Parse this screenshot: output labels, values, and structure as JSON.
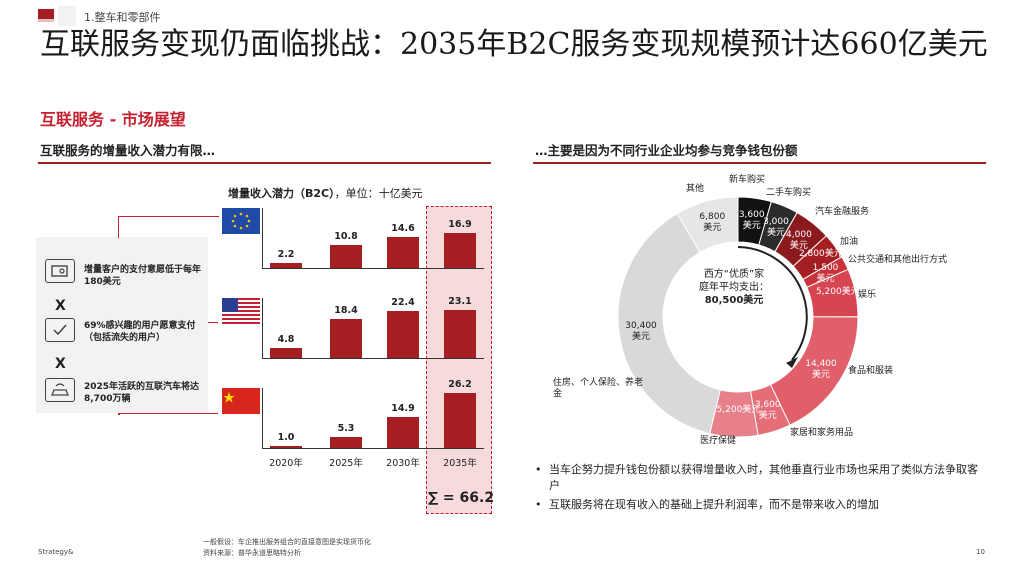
{
  "breadcrumb": "1.整车和零部件",
  "title": "互联服务变现仍面临挑战：2035年B2C服务变现规模预计达660亿美元",
  "subtitle": "互联服务 - 市场展望",
  "left_heading": "互联服务的增量收入潜力有限…",
  "right_heading": "…主要是因为不同行业企业均参与竞争钱包份额",
  "chart_title_bold": "增量收入潜力（B2C）",
  "chart_title_rest": "，单位：十亿美元",
  "conditions": [
    {
      "icon": "wallet-icon",
      "text": "增量客户的支付意愿低于每年180美元"
    },
    {
      "icon": "checklist-icon",
      "text": "69%感兴趣的用户愿意支付（包括流失的用户）"
    },
    {
      "icon": "connected-car-icon",
      "text": "2025年活跃的互联汽车将达8,700万辆"
    }
  ],
  "multiply_symbol": "X",
  "sum_label": "∑ = 66.2",
  "chart_data": {
    "type": "bar",
    "title": "增量收入潜力（B2C），单位：十亿美元",
    "categories": [
      "2020年",
      "2025年",
      "2030年",
      "2035年"
    ],
    "series": [
      {
        "name": "EU",
        "flag": "eu-flag",
        "values": [
          2.2,
          10.8,
          14.6,
          16.9
        ]
      },
      {
        "name": "US",
        "flag": "us-flag",
        "values": [
          4.8,
          18.4,
          22.4,
          23.1
        ]
      },
      {
        "name": "CN",
        "flag": "cn-flag",
        "values": [
          1.0,
          5.3,
          14.9,
          26.2
        ]
      }
    ],
    "value_labels": {
      "EU": [
        "2.2",
        "10.8",
        "14.6",
        "16.9"
      ],
      "US": [
        "4.8",
        "18.4",
        "22.4",
        "23.1"
      ],
      "CN": [
        "1.0",
        "5.3",
        "14.9",
        "26.2"
      ]
    }
  },
  "donut": {
    "center_text": [
      "西方“优质”家",
      "庭年平均支出：",
      "80,500美元"
    ],
    "segments": [
      {
        "label": "新车购买",
        "value": 3600,
        "inner": "3,600\n美元",
        "color": "#111111"
      },
      {
        "label": "二手车购买",
        "value": 3000,
        "inner": "3,000\n美元",
        "color": "#2b2b2b"
      },
      {
        "label": "汽车金融服务",
        "value": 4000,
        "inner": "4,000\n美元",
        "color": "#8b1a1e"
      },
      {
        "label": "加油",
        "value": 2800,
        "inner": "2,800美元",
        "color": "#a51e22"
      },
      {
        "label": "公共交通和其他出行方式",
        "value": 1500,
        "inner": "1,500\n美元",
        "color": "#c8323a"
      },
      {
        "label": "娱乐",
        "value": 5200,
        "inner": "5,200美元",
        "color": "#d84552"
      },
      {
        "label": "食品和服装",
        "value": 14400,
        "inner": "14,400\n美元",
        "color": "#e05f6b"
      },
      {
        "label": "家居和家务用品",
        "value": 3600,
        "inner": "3,600\n美元",
        "color": "#e56d78"
      },
      {
        "label": "医疗保健",
        "value": 5200,
        "inner": "5,200美元",
        "color": "#e8808a"
      },
      {
        "label": "住房、个人保险、养老金",
        "value": 30400,
        "inner": "30,400\n美元",
        "color": "#d9d9d9"
      },
      {
        "label": "其他",
        "value": 6800,
        "inner": "6,800\n美元",
        "color": "#e6e6e6"
      }
    ]
  },
  "bullets": [
    "当车企努力提升钱包份额以获得增量收入时，其他垂直行业市场也采用了类似方法争取客户",
    "互联服务将在现有收入的基础上提升利润率，而不是带来收入的增加"
  ],
  "footnote_1": "一般假设：车企推出服务组合的直接意图是实现货币化",
  "footnote_2": "资料来源：普华永道思略特分析",
  "brand": "Strategy&",
  "page_number": "10"
}
